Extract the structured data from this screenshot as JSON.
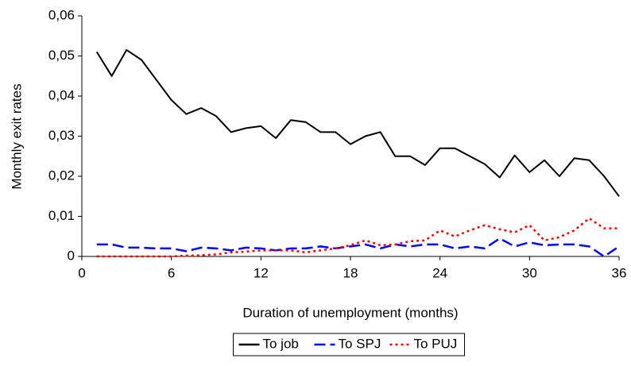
{
  "chart_data": {
    "type": "line",
    "x_label": "Duration of unemployment (months)",
    "y_label": "Monthly exit rates",
    "x": [
      1,
      2,
      3,
      4,
      5,
      6,
      7,
      8,
      9,
      10,
      11,
      12,
      13,
      14,
      15,
      16,
      17,
      18,
      19,
      20,
      21,
      22,
      23,
      24,
      25,
      26,
      27,
      28,
      29,
      30,
      31,
      32,
      33,
      34,
      35,
      36
    ],
    "series": [
      {
        "name": "To job",
        "color": "#000000",
        "dash": "solid",
        "values": [
          0.051,
          0.045,
          0.0515,
          0.049,
          0.044,
          0.039,
          0.0355,
          0.037,
          0.035,
          0.031,
          0.032,
          0.0325,
          0.0295,
          0.034,
          0.0335,
          0.031,
          0.031,
          0.028,
          0.03,
          0.031,
          0.025,
          0.025,
          0.0228,
          0.027,
          0.027,
          0.025,
          0.023,
          0.0197,
          0.0252,
          0.021,
          0.024,
          0.02,
          0.0245,
          0.024,
          0.02,
          0.015
        ]
      },
      {
        "name": "To SPJ",
        "color": "#0000ff",
        "dash": "dashed",
        "values": [
          0.003,
          0.003,
          0.0022,
          0.0022,
          0.002,
          0.002,
          0.0013,
          0.0022,
          0.002,
          0.0015,
          0.0022,
          0.002,
          0.0015,
          0.002,
          0.002,
          0.0025,
          0.002,
          0.0025,
          0.003,
          0.002,
          0.003,
          0.0025,
          0.003,
          0.003,
          0.002,
          0.0025,
          0.002,
          0.0045,
          0.0025,
          0.0035,
          0.0028,
          0.003,
          0.003,
          0.0025,
          0,
          0.0025
        ]
      },
      {
        "name": "To PUJ",
        "color": "#ff0000",
        "dash": "dotted",
        "values": [
          0,
          0,
          0,
          0,
          0,
          0,
          0.0002,
          0.0003,
          0.0005,
          0.001,
          0.0012,
          0.0015,
          0.0015,
          0.0015,
          0.001,
          0.0015,
          0.002,
          0.0028,
          0.004,
          0.0028,
          0.003,
          0.0038,
          0.004,
          0.0065,
          0.005,
          0.0065,
          0.0078,
          0.0068,
          0.006,
          0.0078,
          0.004,
          0.0048,
          0.0065,
          0.0095,
          0.007,
          0.007
        ]
      }
    ],
    "xlim": [
      0,
      36
    ],
    "xticks": [
      0,
      6,
      12,
      18,
      24,
      30,
      36
    ],
    "ylim": [
      0,
      0.06
    ],
    "yticks": [
      0,
      {
        "value": 0.01,
        "label": "0,01"
      },
      {
        "value": 0.02,
        "label": "0,02"
      },
      {
        "value": 0.03,
        "label": "0,03"
      },
      {
        "value": 0.04,
        "label": "0,04"
      },
      {
        "value": 0.05,
        "label": "0,05"
      },
      {
        "value": 0.06,
        "label": "0,06"
      }
    ],
    "grid": false,
    "legend": "bottom"
  }
}
